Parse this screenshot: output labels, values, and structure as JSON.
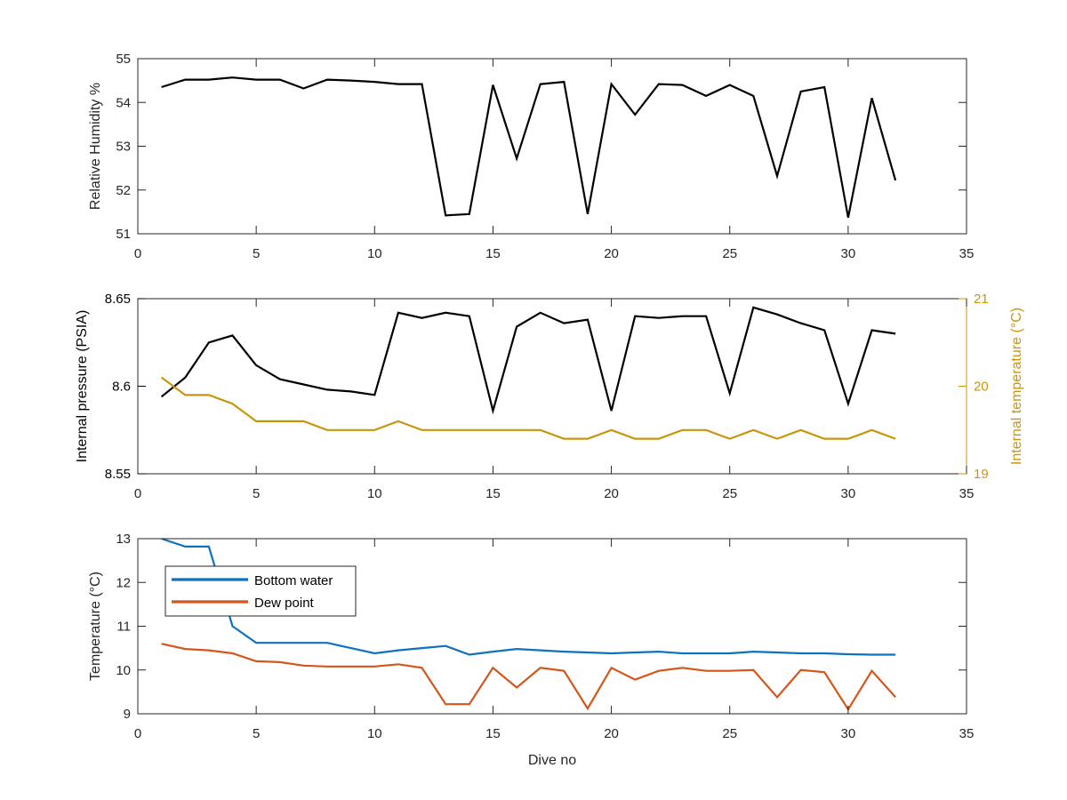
{
  "chart_data": [
    {
      "type": "line",
      "xlabel": "",
      "ylabel": "Relative Humidity %",
      "xlim": [
        0,
        35
      ],
      "ylim": [
        51,
        55
      ],
      "xticks": [
        "0",
        "5",
        "10",
        "15",
        "20",
        "25",
        "30",
        "35"
      ],
      "yticks": [
        "51",
        "52",
        "53",
        "54",
        "55"
      ],
      "grid": false,
      "x": [
        1,
        2,
        3,
        4,
        5,
        6,
        7,
        8,
        9,
        10,
        11,
        12,
        13,
        14,
        15,
        16,
        17,
        18,
        19,
        20,
        21,
        22,
        23,
        24,
        25,
        26,
        27,
        28,
        29,
        30,
        31,
        32
      ],
      "series": [
        {
          "name": "",
          "color": "#000000",
          "values": [
            54.35,
            54.52,
            54.52,
            54.57,
            54.52,
            54.52,
            54.32,
            54.52,
            54.5,
            54.47,
            54.42,
            54.42,
            51.42,
            51.45,
            54.4,
            52.72,
            54.42,
            54.47,
            51.45,
            54.42,
            53.72,
            54.42,
            54.4,
            54.15,
            54.4,
            54.15,
            52.32,
            54.25,
            54.35,
            51.37,
            54.1,
            52.22
          ]
        }
      ]
    },
    {
      "type": "line",
      "xlabel": "",
      "ylabel": "Internal pressure (PSIA)",
      "y2label": "Internal temperature (°C)",
      "xlim": [
        0,
        35
      ],
      "ylim": [
        8.55,
        8.65
      ],
      "y2lim": [
        19,
        21
      ],
      "xticks": [
        "0",
        "5",
        "10",
        "15",
        "20",
        "25",
        "30",
        "35"
      ],
      "yticks": [
        "8.55",
        "8.6",
        "8.65"
      ],
      "y2ticks": [
        "19",
        "20",
        "21"
      ],
      "grid": false,
      "x": [
        1,
        2,
        3,
        4,
        5,
        6,
        7,
        8,
        9,
        10,
        11,
        12,
        13,
        14,
        15,
        16,
        17,
        18,
        19,
        20,
        21,
        22,
        23,
        24,
        25,
        26,
        27,
        28,
        29,
        30,
        31,
        32
      ],
      "series": [
        {
          "name": "",
          "axis": "left",
          "color": "#000000",
          "values": [
            8.594,
            8.605,
            8.625,
            8.629,
            8.612,
            8.604,
            8.601,
            8.598,
            8.597,
            8.595,
            8.642,
            8.639,
            8.642,
            8.64,
            8.586,
            8.634,
            8.642,
            8.636,
            8.638,
            8.586,
            8.64,
            8.639,
            8.64,
            8.64,
            8.596,
            8.645,
            8.641,
            8.636,
            8.632,
            8.59,
            8.632,
            8.63
          ]
        },
        {
          "name": "",
          "axis": "right",
          "color": "#c8960e",
          "values": [
            20.1,
            19.9,
            19.9,
            19.8,
            19.6,
            19.6,
            19.6,
            19.5,
            19.5,
            19.5,
            19.6,
            19.5,
            19.5,
            19.5,
            19.5,
            19.5,
            19.5,
            19.4,
            19.4,
            19.5,
            19.4,
            19.4,
            19.5,
            19.5,
            19.4,
            19.5,
            19.4,
            19.5,
            19.4,
            19.4,
            19.5,
            19.4
          ]
        }
      ]
    },
    {
      "type": "line",
      "xlabel": "Dive no",
      "ylabel": "Temperature (°C)",
      "xlim": [
        0,
        35
      ],
      "ylim": [
        9,
        13
      ],
      "xticks": [
        "0",
        "5",
        "10",
        "15",
        "20",
        "25",
        "30",
        "35"
      ],
      "yticks": [
        "9",
        "10",
        "11",
        "12",
        "13"
      ],
      "grid": false,
      "legend": "top-left",
      "x": [
        1,
        2,
        3,
        4,
        5,
        6,
        7,
        8,
        9,
        10,
        11,
        12,
        13,
        14,
        15,
        16,
        17,
        18,
        19,
        20,
        21,
        22,
        23,
        24,
        25,
        26,
        27,
        28,
        29,
        30,
        31,
        32
      ],
      "series": [
        {
          "name": "Bottom water",
          "color": "#0e72bd",
          "values": [
            13.0,
            12.82,
            12.82,
            11.0,
            10.62,
            10.62,
            10.62,
            10.62,
            10.5,
            10.38,
            10.45,
            10.5,
            10.55,
            10.35,
            10.42,
            10.48,
            10.45,
            10.42,
            10.4,
            10.38,
            10.4,
            10.42,
            10.38,
            10.38,
            10.38,
            10.42,
            10.4,
            10.38,
            10.38,
            10.36,
            10.35,
            10.35
          ]
        },
        {
          "name": "Dew point",
          "color": "#d4561b",
          "values": [
            10.6,
            10.48,
            10.45,
            10.38,
            10.2,
            10.18,
            10.1,
            10.08,
            10.08,
            10.08,
            10.13,
            10.05,
            9.22,
            9.22,
            10.05,
            9.6,
            10.05,
            9.98,
            9.12,
            10.05,
            9.78,
            9.98,
            10.05,
            9.98,
            9.98,
            10.0,
            9.38,
            10.0,
            9.95,
            9.1,
            9.98,
            9.38
          ]
        }
      ]
    }
  ]
}
